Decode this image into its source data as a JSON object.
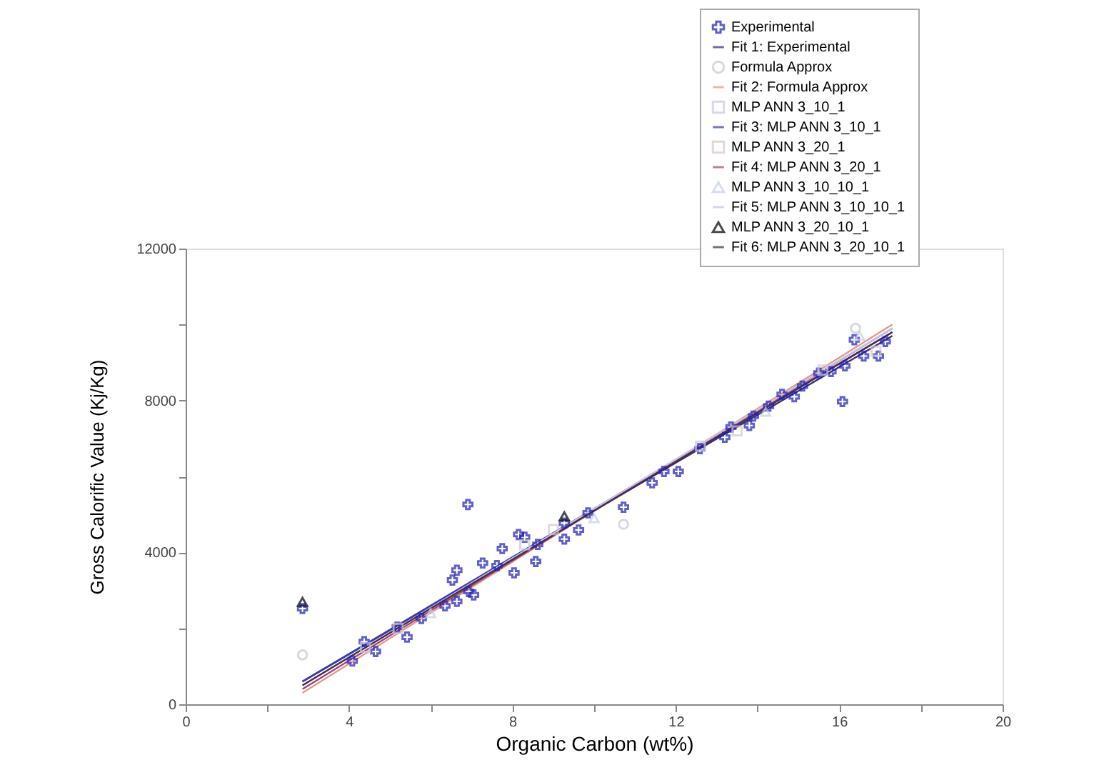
{
  "chart_data": {
    "type": "scatter",
    "xlabel": "Organic Carbon (wt%)",
    "ylabel": "Gross Calorific Value (Kj/Kg)",
    "xlim": [
      0,
      20
    ],
    "ylim": [
      0,
      12000
    ],
    "xticks": [
      0,
      {
        "value": 2,
        "label": null
      },
      4,
      {
        "value": 6,
        "label": null
      },
      8,
      {
        "value": 10,
        "label": null
      },
      12,
      {
        "value": 14,
        "label": null
      },
      16,
      {
        "value": 18,
        "label": null
      },
      20
    ],
    "yticks": [
      0,
      {
        "value": 2000,
        "label": null
      },
      4000,
      {
        "value": 6000,
        "label": null
      },
      8000,
      {
        "value": 10000,
        "label": null
      },
      12000
    ],
    "grid": false,
    "legend": "top right",
    "series": [
      {
        "name": "Experimental",
        "type": "scatter",
        "marker": "cross",
        "color": "#1f1fb4",
        "x": [
          2.86,
          4.08,
          4.37,
          4.65,
          5.18,
          5.42,
          5.77,
          6.35,
          6.64,
          6.53,
          6.64,
          6.91,
          6.93,
          7.05,
          7.27,
          7.62,
          7.75,
          8.04,
          8.15,
          8.3,
          8.62,
          8.57,
          9.27,
          9.27,
          9.62,
          9.85,
          10.72,
          11.42,
          11.71,
          12.06,
          12.59,
          13.2,
          13.35,
          13.8,
          13.9,
          14.27,
          14.6,
          14.9,
          15.1,
          15.5,
          15.8,
          16.08,
          16.14,
          16.37,
          16.6,
          16.96,
          17.13
        ],
        "values": [
          2520,
          1140,
          1650,
          1390,
          2030,
          1770,
          2260,
          2590,
          2710,
          3270,
          3530,
          5260,
          2970,
          2880,
          3720,
          3650,
          4100,
          3460,
          4470,
          4400,
          4210,
          3760,
          4770,
          4350,
          4590,
          5040,
          5190,
          5830,
          6130,
          6130,
          6730,
          7030,
          7300,
          7340,
          7590,
          7850,
          8160,
          8100,
          8380,
          8720,
          8760,
          7970,
          8910,
          9600,
          9170,
          9170,
          9550
        ]
      },
      {
        "name": "Fit 1: Experimental",
        "type": "line",
        "marker": "none",
        "line_style": "solid",
        "color": "#3a2f7a",
        "x": [
          2.86,
          17.3
        ],
        "values": [
          600,
          9700
        ]
      },
      {
        "name": "Formula Approx",
        "type": "scatter",
        "marker": "circle",
        "color": "#c8c8d8",
        "x": [
          2.86,
          10.72,
          16.4
        ],
        "values": [
          1300,
          4740,
          9900
        ]
      },
      {
        "name": "Fit 2: Formula Approx",
        "type": "line",
        "marker": "none",
        "line_style": "solid",
        "color": "#e39a8a",
        "x": [
          2.86,
          17.3
        ],
        "values": [
          300,
          10000
        ]
      },
      {
        "name": "MLP ANN 3_10_1",
        "type": "scatter",
        "marker": "square",
        "color": "#c8c8e0",
        "x": [
          4.4,
          8.3,
          12.6,
          15.6
        ],
        "values": [
          1500,
          4200,
          6800,
          8800
        ]
      },
      {
        "name": "Fit 3: MLP ANN 3_10_1",
        "type": "line",
        "marker": "none",
        "line_style": "solid",
        "color": "#3b3bb5",
        "x": [
          2.86,
          17.3
        ],
        "values": [
          600,
          9800
        ]
      },
      {
        "name": "MLP ANN 3_20_1",
        "type": "scatter",
        "marker": "square",
        "color": "#d8c8c8",
        "x": [
          5.2,
          9.0,
          13.5,
          16.9
        ],
        "values": [
          2000,
          4600,
          7200,
          9300
        ]
      },
      {
        "name": "Fit 4: MLP ANN 3_20_1",
        "type": "line",
        "marker": "none",
        "line_style": "solid",
        "color": "#9a4a7a",
        "x": [
          2.86,
          17.3
        ],
        "values": [
          400,
          9900
        ]
      },
      {
        "name": "MLP ANN 3_10_10_1",
        "type": "scatter",
        "marker": "triangle",
        "color": "#c8d0e8",
        "x": [
          6.0,
          10.0,
          14.2,
          16.5
        ],
        "values": [
          2400,
          4900,
          7700,
          9700
        ]
      },
      {
        "name": "Fit 5: MLP ANN 3_10_10_1",
        "type": "line",
        "marker": "none",
        "line_style": "solid",
        "color": "#c4c4e4",
        "x": [
          2.86,
          17.3
        ],
        "values": [
          500,
          9900
        ]
      },
      {
        "name": "MLP ANN 3_20_10_1",
        "type": "scatter",
        "marker": "triangle",
        "color": "#000000",
        "x": [
          2.86,
          9.27
        ],
        "values": [
          2700,
          4950
        ]
      },
      {
        "name": "Fit 6: MLP ANN 3_20_10_1",
        "type": "line",
        "marker": "none",
        "line_style": "solid",
        "color": "#4a2d4a",
        "x": [
          2.86,
          17.3
        ],
        "values": [
          500,
          9800
        ]
      }
    ]
  }
}
